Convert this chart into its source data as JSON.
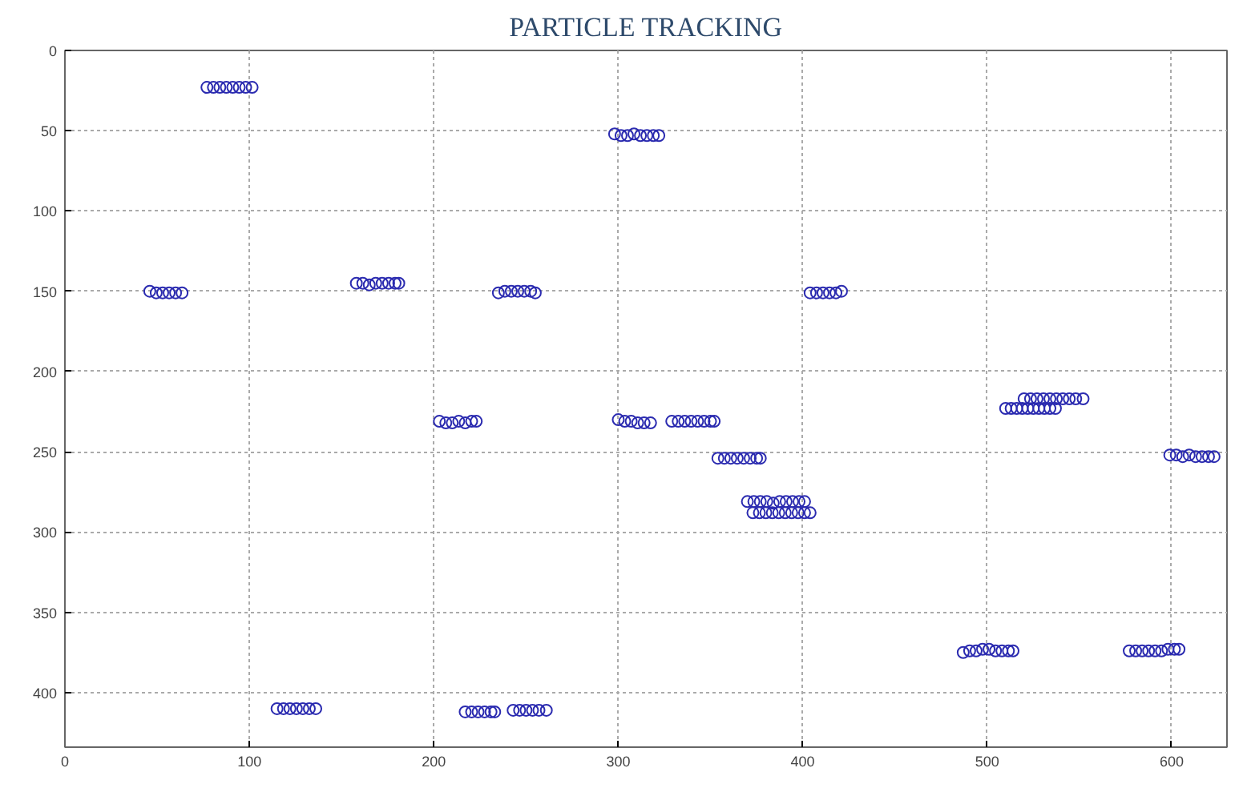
{
  "chart_data": {
    "type": "scatter",
    "title": "PARTICLE TRACKING",
    "x": [
      77,
      80.5,
      84,
      87.5,
      91,
      94.5,
      98,
      101.5,
      46,
      49.5,
      53,
      56.5,
      60,
      63.5,
      158,
      161.5,
      165,
      168.5,
      172,
      175.5,
      179,
      181,
      235,
      238.5,
      242,
      245.5,
      249,
      252.5,
      255,
      298,
      301.5,
      305,
      308.5,
      312,
      315.5,
      319,
      322,
      404,
      407.5,
      411,
      414.5,
      418,
      421,
      203,
      206.5,
      210,
      213.5,
      217,
      220.5,
      223,
      300,
      303.5,
      307,
      310.5,
      314,
      317.5,
      329,
      332.5,
      336,
      339.5,
      343,
      346.5,
      350,
      352,
      354,
      357.5,
      361,
      364.5,
      368,
      371.5,
      375,
      377,
      370,
      373.5,
      377,
      380.5,
      384,
      387.5,
      391,
      394.5,
      398,
      401,
      373,
      376.5,
      380,
      383.5,
      387,
      390.5,
      394,
      397.5,
      401,
      404,
      510,
      513,
      516,
      519,
      522,
      525,
      528,
      531,
      534,
      537,
      520,
      523.5,
      527,
      530.5,
      534,
      537.5,
      541,
      544.5,
      548,
      552,
      599,
      602.5,
      606,
      609.5,
      613,
      616.5,
      620,
      623,
      487,
      490.5,
      494,
      497.5,
      501,
      504.5,
      508,
      511.5,
      514,
      577,
      580.5,
      584,
      587.5,
      591,
      594.5,
      598,
      601.5,
      604,
      115,
      118.5,
      122,
      125.5,
      129,
      132.5,
      136,
      217,
      220.5,
      224,
      227.5,
      231,
      233,
      243,
      246.5,
      250,
      253.5,
      257,
      261
    ],
    "values": [
      23,
      23,
      23,
      23,
      23,
      23,
      23,
      23,
      150,
      151,
      151,
      151,
      151,
      151,
      145,
      145,
      146,
      145,
      145,
      145,
      145,
      145,
      151,
      150,
      150,
      150,
      150,
      150,
      151,
      52,
      53,
      53,
      52,
      53,
      53,
      53,
      53,
      151,
      151,
      151,
      151,
      151,
      150,
      231,
      232,
      232,
      231,
      232,
      231,
      231,
      230,
      231,
      231,
      232,
      232,
      232,
      231,
      231,
      231,
      231,
      231,
      231,
      231,
      231,
      254,
      254,
      254,
      254,
      254,
      254,
      254,
      254,
      281,
      281,
      281,
      281,
      282,
      281,
      281,
      281,
      281,
      281,
      288,
      288,
      288,
      288,
      288,
      288,
      288,
      288,
      288,
      288,
      223,
      223,
      223,
      223,
      223,
      223,
      223,
      223,
      223,
      223,
      217,
      217,
      217,
      217,
      217,
      217,
      217,
      217,
      217,
      217,
      252,
      252,
      253,
      252,
      253,
      253,
      253,
      253,
      375,
      374,
      374,
      373,
      373,
      374,
      374,
      374,
      374,
      374,
      374,
      374,
      374,
      374,
      374,
      373,
      373,
      373,
      410,
      410,
      410,
      410,
      410,
      410,
      410,
      412,
      412,
      412,
      412,
      412,
      412,
      411,
      411,
      411,
      411,
      411,
      411
    ],
    "color": "#2b2bb0",
    "marker": "circle",
    "xlim": [
      0,
      630
    ],
    "ylim": [
      434,
      0
    ],
    "xticks": [
      0,
      100,
      200,
      300,
      400,
      500,
      600
    ],
    "yticks": [
      0,
      50,
      100,
      150,
      200,
      250,
      300,
      350,
      400
    ],
    "grid": true
  }
}
